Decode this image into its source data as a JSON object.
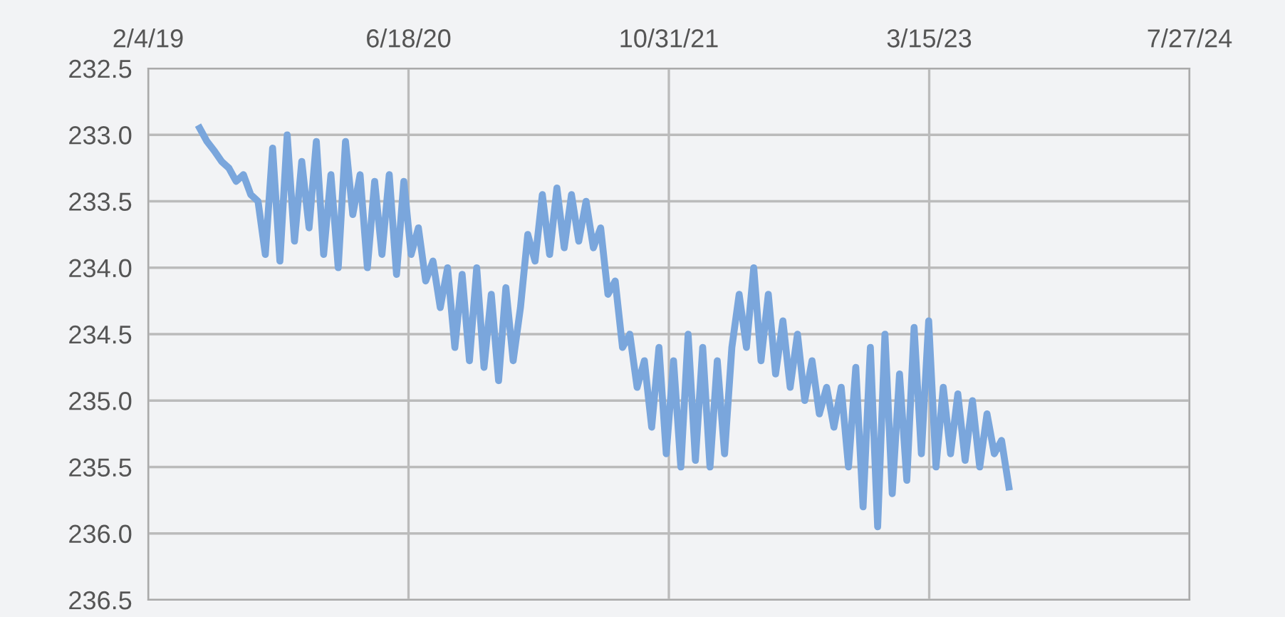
{
  "chart_data": {
    "type": "line",
    "color": "#7aa6dc",
    "grid": true,
    "marker": "none",
    "line_style": "solid",
    "x": [
      "2019-05-14",
      "2019-05-28",
      "2019-06-11",
      "2019-06-25",
      "2019-07-09",
      "2019-07-23",
      "2019-08-06",
      "2019-08-20",
      "2019-09-03",
      "2019-09-17",
      "2019-10-01",
      "2019-10-15",
      "2019-10-29",
      "2019-11-12",
      "2019-11-26",
      "2019-12-10",
      "2019-12-24",
      "2020-01-07",
      "2020-01-21",
      "2020-02-04",
      "2020-02-18",
      "2020-03-03",
      "2020-03-17",
      "2020-03-31",
      "2020-04-14",
      "2020-04-28",
      "2020-05-12",
      "2020-05-26",
      "2020-06-09",
      "2020-06-23",
      "2020-07-07",
      "2020-07-21",
      "2020-08-04",
      "2020-08-18",
      "2020-09-01",
      "2020-09-15",
      "2020-09-29",
      "2020-10-13",
      "2020-10-27",
      "2020-11-10",
      "2020-11-24",
      "2020-12-08",
      "2020-12-22",
      "2021-01-05",
      "2021-01-19",
      "2021-02-02",
      "2021-02-16",
      "2021-03-02",
      "2021-03-16",
      "2021-03-30",
      "2021-04-13",
      "2021-04-27",
      "2021-05-11",
      "2021-05-25",
      "2021-06-08",
      "2021-06-22",
      "2021-07-06",
      "2021-07-20",
      "2021-08-03",
      "2021-08-17",
      "2021-08-31",
      "2021-09-14",
      "2021-09-28",
      "2021-10-12",
      "2021-10-26",
      "2021-11-09",
      "2021-11-23",
      "2021-12-07",
      "2021-12-21",
      "2022-01-04",
      "2022-01-18",
      "2022-02-01",
      "2022-02-15",
      "2022-03-01",
      "2022-03-15",
      "2022-03-29",
      "2022-04-12",
      "2022-04-26",
      "2022-05-10",
      "2022-05-24",
      "2022-06-07",
      "2022-06-21",
      "2022-07-05",
      "2022-07-19",
      "2022-08-02",
      "2022-08-16",
      "2022-08-30",
      "2022-09-13",
      "2022-09-27",
      "2022-10-11",
      "2022-10-25",
      "2022-11-08",
      "2022-11-22",
      "2022-12-06",
      "2022-12-20",
      "2023-01-03",
      "2023-01-17",
      "2023-01-31",
      "2023-02-14",
      "2023-02-28",
      "2023-03-14",
      "2023-03-28",
      "2023-04-11",
      "2023-04-25",
      "2023-05-09",
      "2023-05-23",
      "2023-06-06",
      "2023-06-20",
      "2023-07-04",
      "2023-07-18",
      "2023-08-01",
      "2023-08-15"
    ],
    "values": [
      232.95,
      233.05,
      233.12,
      233.2,
      233.25,
      233.35,
      233.3,
      233.45,
      233.5,
      233.9,
      233.1,
      233.95,
      233.0,
      233.8,
      233.2,
      233.7,
      233.05,
      233.9,
      233.3,
      234.0,
      233.05,
      233.6,
      233.3,
      234.0,
      233.35,
      233.9,
      233.3,
      234.05,
      233.35,
      233.9,
      233.7,
      234.1,
      233.95,
      234.3,
      234.0,
      234.6,
      234.05,
      234.7,
      234.0,
      234.75,
      234.2,
      234.85,
      234.15,
      234.7,
      234.3,
      233.75,
      233.95,
      233.45,
      233.9,
      233.4,
      233.85,
      233.45,
      233.8,
      233.5,
      233.85,
      233.7,
      234.2,
      234.1,
      234.6,
      234.5,
      234.9,
      234.7,
      235.2,
      234.6,
      235.4,
      234.7,
      235.5,
      234.5,
      235.45,
      234.6,
      235.5,
      234.7,
      235.4,
      234.6,
      234.2,
      234.6,
      234.0,
      234.7,
      234.2,
      234.8,
      234.4,
      234.9,
      234.5,
      235.0,
      234.7,
      235.1,
      234.9,
      235.2,
      234.9,
      235.5,
      234.75,
      235.8,
      234.6,
      235.95,
      234.5,
      235.7,
      234.8,
      235.6,
      234.45,
      235.4,
      234.4,
      235.5,
      234.9,
      235.4,
      234.95,
      235.45,
      235.0,
      235.5,
      235.1,
      235.4,
      235.3,
      235.65
    ],
    "xlim": [
      "2019-02-04",
      "2024-07-27"
    ],
    "xticks": [
      {
        "value": "2019-02-04",
        "label": "2/4/19"
      },
      {
        "value": "2020-06-18",
        "label": "6/18/20"
      },
      {
        "value": "2021-10-31",
        "label": "10/31/21"
      },
      {
        "value": "2023-03-15",
        "label": "3/15/23"
      },
      {
        "value": "2024-07-27",
        "label": "7/27/24"
      }
    ],
    "ylim": [
      236.5,
      232.5
    ],
    "yticks": [
      {
        "value": 232.5,
        "label": "232.5"
      },
      {
        "value": 233.0,
        "label": "233.0"
      },
      {
        "value": 233.5,
        "label": "233.5"
      },
      {
        "value": 234.0,
        "label": "234.0"
      },
      {
        "value": 234.5,
        "label": "234.5"
      },
      {
        "value": 235.0,
        "label": "235.0"
      },
      {
        "value": 235.5,
        "label": "235.5"
      },
      {
        "value": 236.0,
        "label": "236.0"
      },
      {
        "value": 236.5,
        "label": "236.5"
      }
    ]
  }
}
